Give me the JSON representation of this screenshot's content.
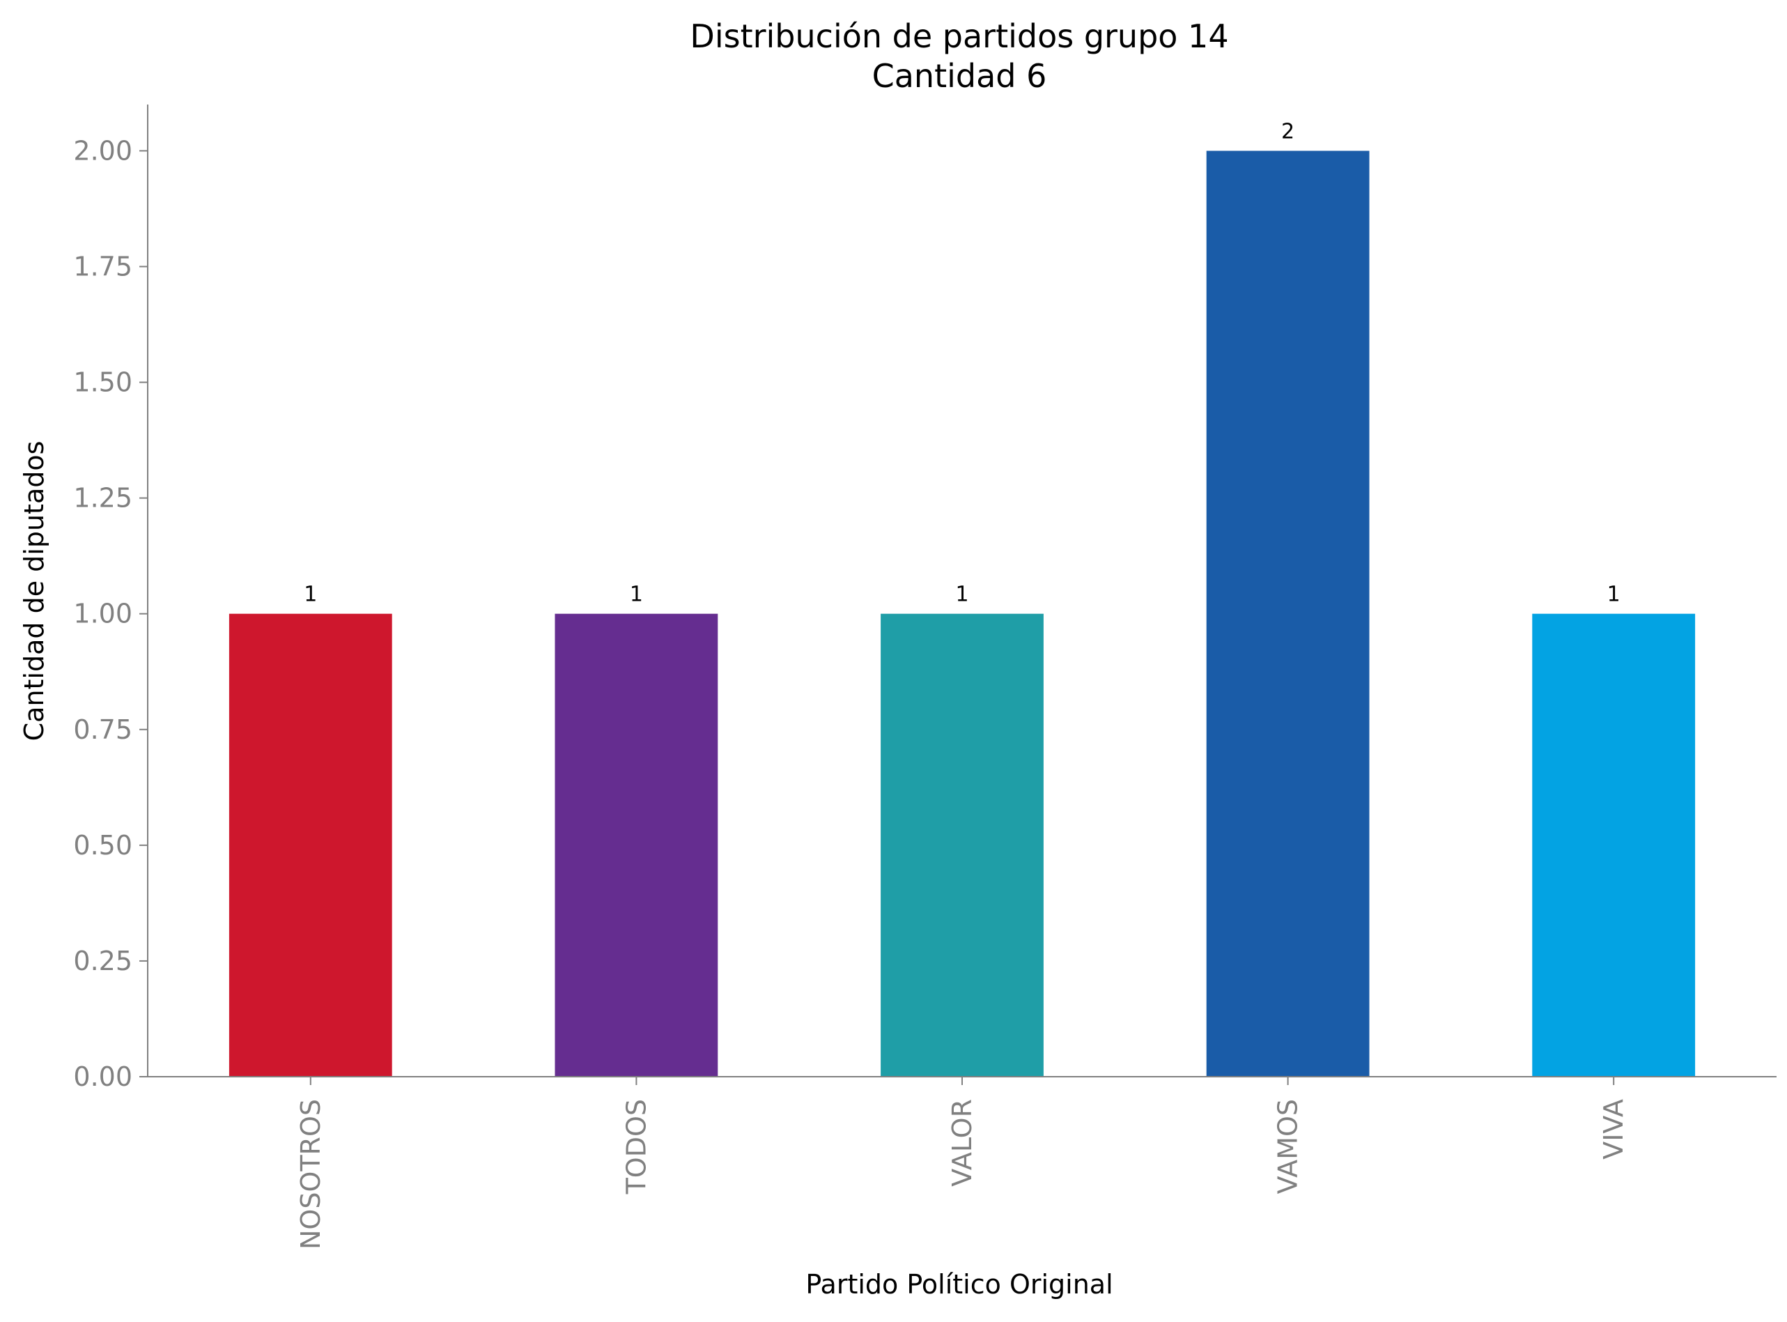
{
  "chart_data": {
    "type": "bar",
    "title": "Distribución de partidos grupo 14",
    "subtitle": "Cantidad 6",
    "xlabel": "Partido Político Original",
    "ylabel": "Cantidad de diputados",
    "categories": [
      "NOSOTROS",
      "TODOS",
      "VALOR",
      "VAMOS",
      "VIVA"
    ],
    "values": [
      1,
      1,
      1,
      2,
      1
    ],
    "data_labels": [
      "1",
      "1",
      "1",
      "2",
      "1"
    ],
    "colors": [
      "#ce172d",
      "#652d90",
      "#1f9ea7",
      "#1a5ca8",
      "#03a3e3"
    ],
    "y_ticks": [
      "0.00",
      "0.25",
      "0.50",
      "0.75",
      "1.00",
      "1.25",
      "1.50",
      "1.75",
      "2.00"
    ],
    "ylim": [
      0,
      2.1
    ],
    "grid": false,
    "legend": "none",
    "x_tick_rotation": "vertical",
    "axis_color": "#808080",
    "tick_label_color": "#808080",
    "text_color": "#000000"
  }
}
